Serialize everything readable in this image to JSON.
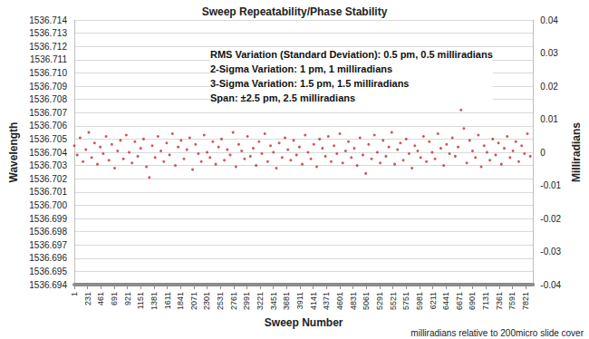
{
  "chart_data": {
    "type": "scatter",
    "title": "Sweep Repeatability/Phase Stability",
    "x_label": "Sweep Number",
    "y_label": "Wavelength",
    "y2_label": "Milliradians",
    "annotations": [
      "RMS Variation (Standard Deviation): 0.5 pm, 0.5 milliradians",
      "2-Sigma Variation: 1 pm, 1 milliradians",
      "3-Sigma Variation: 1.5 pm, 1.5 milliradians",
      "Span: ±2.5 pm, 2.5 milliradians"
    ],
    "note": "milliradians relative to 200micro slide cover",
    "color": "#c0302b",
    "marker": "circle",
    "grid": true,
    "x": [
      1,
      51,
      101,
      151,
      201,
      251,
      301,
      351,
      401,
      451,
      501,
      551,
      601,
      651,
      701,
      751,
      801,
      851,
      901,
      951,
      1001,
      1051,
      1101,
      1151,
      1201,
      1251,
      1301,
      1351,
      1401,
      1451,
      1501,
      1551,
      1601,
      1651,
      1701,
      1751,
      1801,
      1851,
      1901,
      1951,
      2001,
      2051,
      2101,
      2151,
      2201,
      2251,
      2301,
      2351,
      2401,
      2451,
      2501,
      2551,
      2601,
      2651,
      2701,
      2751,
      2801,
      2851,
      2901,
      2951,
      3001,
      3051,
      3101,
      3151,
      3201,
      3251,
      3301,
      3351,
      3401,
      3451,
      3501,
      3551,
      3601,
      3651,
      3701,
      3751,
      3801,
      3851,
      3901,
      3951,
      4001,
      4051,
      4101,
      4151,
      4201,
      4251,
      4301,
      4351,
      4401,
      4451,
      4501,
      4551,
      4601,
      4651,
      4701,
      4751,
      4801,
      4851,
      4901,
      4951,
      5001,
      5051,
      5101,
      5151,
      5201,
      5251,
      5301,
      5351,
      5401,
      5451,
      5501,
      5551,
      5601,
      5651,
      5701,
      5751,
      5801,
      5851,
      5901,
      5951,
      6001,
      6051,
      6101,
      6151,
      6201,
      6251,
      6301,
      6351,
      6401,
      6451,
      6501,
      6551,
      6601,
      6651,
      6701,
      6751,
      6801,
      6851,
      6901,
      6951,
      7001,
      7051,
      7101,
      7151,
      7201,
      7251,
      7301,
      7351,
      7401,
      7451,
      7501,
      7551,
      7601,
      7651,
      7701,
      7751,
      7801,
      7851,
      7901
    ],
    "values": [
      1536.7045,
      1536.7038,
      1536.7051,
      1536.7033,
      1536.7042,
      1536.7055,
      1536.7036,
      1536.7047,
      1536.7031,
      1536.7044,
      1536.7039,
      1536.7052,
      1536.7034,
      1536.7046,
      1536.7028,
      1536.7041,
      1536.7049,
      1536.7035,
      1536.7053,
      1536.704,
      1536.7032,
      1536.7048,
      1536.7037,
      1536.7043,
      1536.705,
      1536.7029,
      1536.7021,
      1536.7045,
      1536.7036,
      1536.7052,
      1536.7041,
      1536.7033,
      1536.7047,
      1536.7038,
      1536.7054,
      1536.703,
      1536.7044,
      1536.7049,
      1536.7035,
      1536.7042,
      1536.7051,
      1536.7027,
      1536.7046,
      1536.7039,
      1536.7033,
      1536.7053,
      1536.704,
      1536.7036,
      1536.7048,
      1536.7031,
      1536.7044,
      1536.705,
      1536.7034,
      1536.7042,
      1536.7038,
      1536.7055,
      1536.7029,
      1536.7046,
      1536.7041,
      1536.7035,
      1536.7052,
      1536.7037,
      1536.7043,
      1536.703,
      1536.7048,
      1536.7039,
      1536.7054,
      1536.7033,
      1536.7045,
      1536.704,
      1536.7028,
      1536.7047,
      1536.7036,
      1536.7051,
      1536.7042,
      1536.7034,
      1536.7049,
      1536.7038,
      1536.7044,
      1536.7031,
      1536.7053,
      1536.704,
      1536.7035,
      1536.7046,
      1536.7029,
      1536.705,
      1536.7043,
      1536.7037,
      1536.7052,
      1536.7033,
      1536.7045,
      1536.7039,
      1536.7054,
      1536.7032,
      1536.7041,
      1536.7048,
      1536.7036,
      1536.7043,
      1536.703,
      1536.7051,
      1536.7038,
      1536.7024,
      1536.7046,
      1536.7035,
      1536.7053,
      1536.704,
      1536.7032,
      1536.7049,
      1536.7037,
      1536.7044,
      1536.7055,
      1536.7031,
      1536.7042,
      1536.7047,
      1536.7034,
      1536.705,
      1536.7039,
      1536.7028,
      1536.7045,
      1536.7041,
      1536.7036,
      1536.7052,
      1536.7033,
      1536.7048,
      1536.704,
      1536.7035,
      1536.7054,
      1536.7043,
      1536.703,
      1536.7046,
      1536.7039,
      1536.7051,
      1536.7037,
      1536.7044,
      1536.7072,
      1536.7058,
      1536.7032,
      1536.7049,
      1536.7041,
      1536.7036,
      1536.7053,
      1536.7029,
      1536.7045,
      1536.704,
      1536.7034,
      1536.705,
      1536.7038,
      1536.7047,
      1536.7031,
      1536.7043,
      1536.7052,
      1536.7036,
      1536.7041,
      1536.7048,
      1536.7033,
      1536.7045,
      1536.7039,
      1536.7054,
      1536.7037
    ],
    "xlim": [
      1,
      7950
    ],
    "xticks": [
      1,
      231,
      461,
      691,
      921,
      1151,
      1381,
      1611,
      1841,
      2071,
      2301,
      2531,
      2761,
      2991,
      3221,
      3451,
      3681,
      3911,
      4141,
      4371,
      4601,
      4831,
      5061,
      5291,
      5521,
      5751,
      5981,
      6211,
      6441,
      6671,
      6901,
      7131,
      7361,
      7591,
      7821
    ],
    "ylim": [
      1536.694,
      1536.714
    ],
    "yticks": [
      1536.694,
      1536.695,
      1536.696,
      1536.697,
      1536.698,
      1536.699,
      {
        "value": 1536.7,
        "label": "1536.700"
      },
      1536.701,
      1536.702,
      1536.703,
      1536.704,
      1536.705,
      1536.706,
      1536.707,
      1536.708,
      1536.709,
      {
        "value": 1536.71,
        "label": "1536.710"
      },
      1536.711,
      1536.712,
      1536.713,
      1536.714
    ],
    "y2lim": [
      -0.04,
      0.04
    ],
    "y2ticks": [
      -0.04,
      -0.03,
      -0.02,
      -0.01,
      0,
      0.01,
      0.02,
      0.03,
      0.04
    ]
  }
}
